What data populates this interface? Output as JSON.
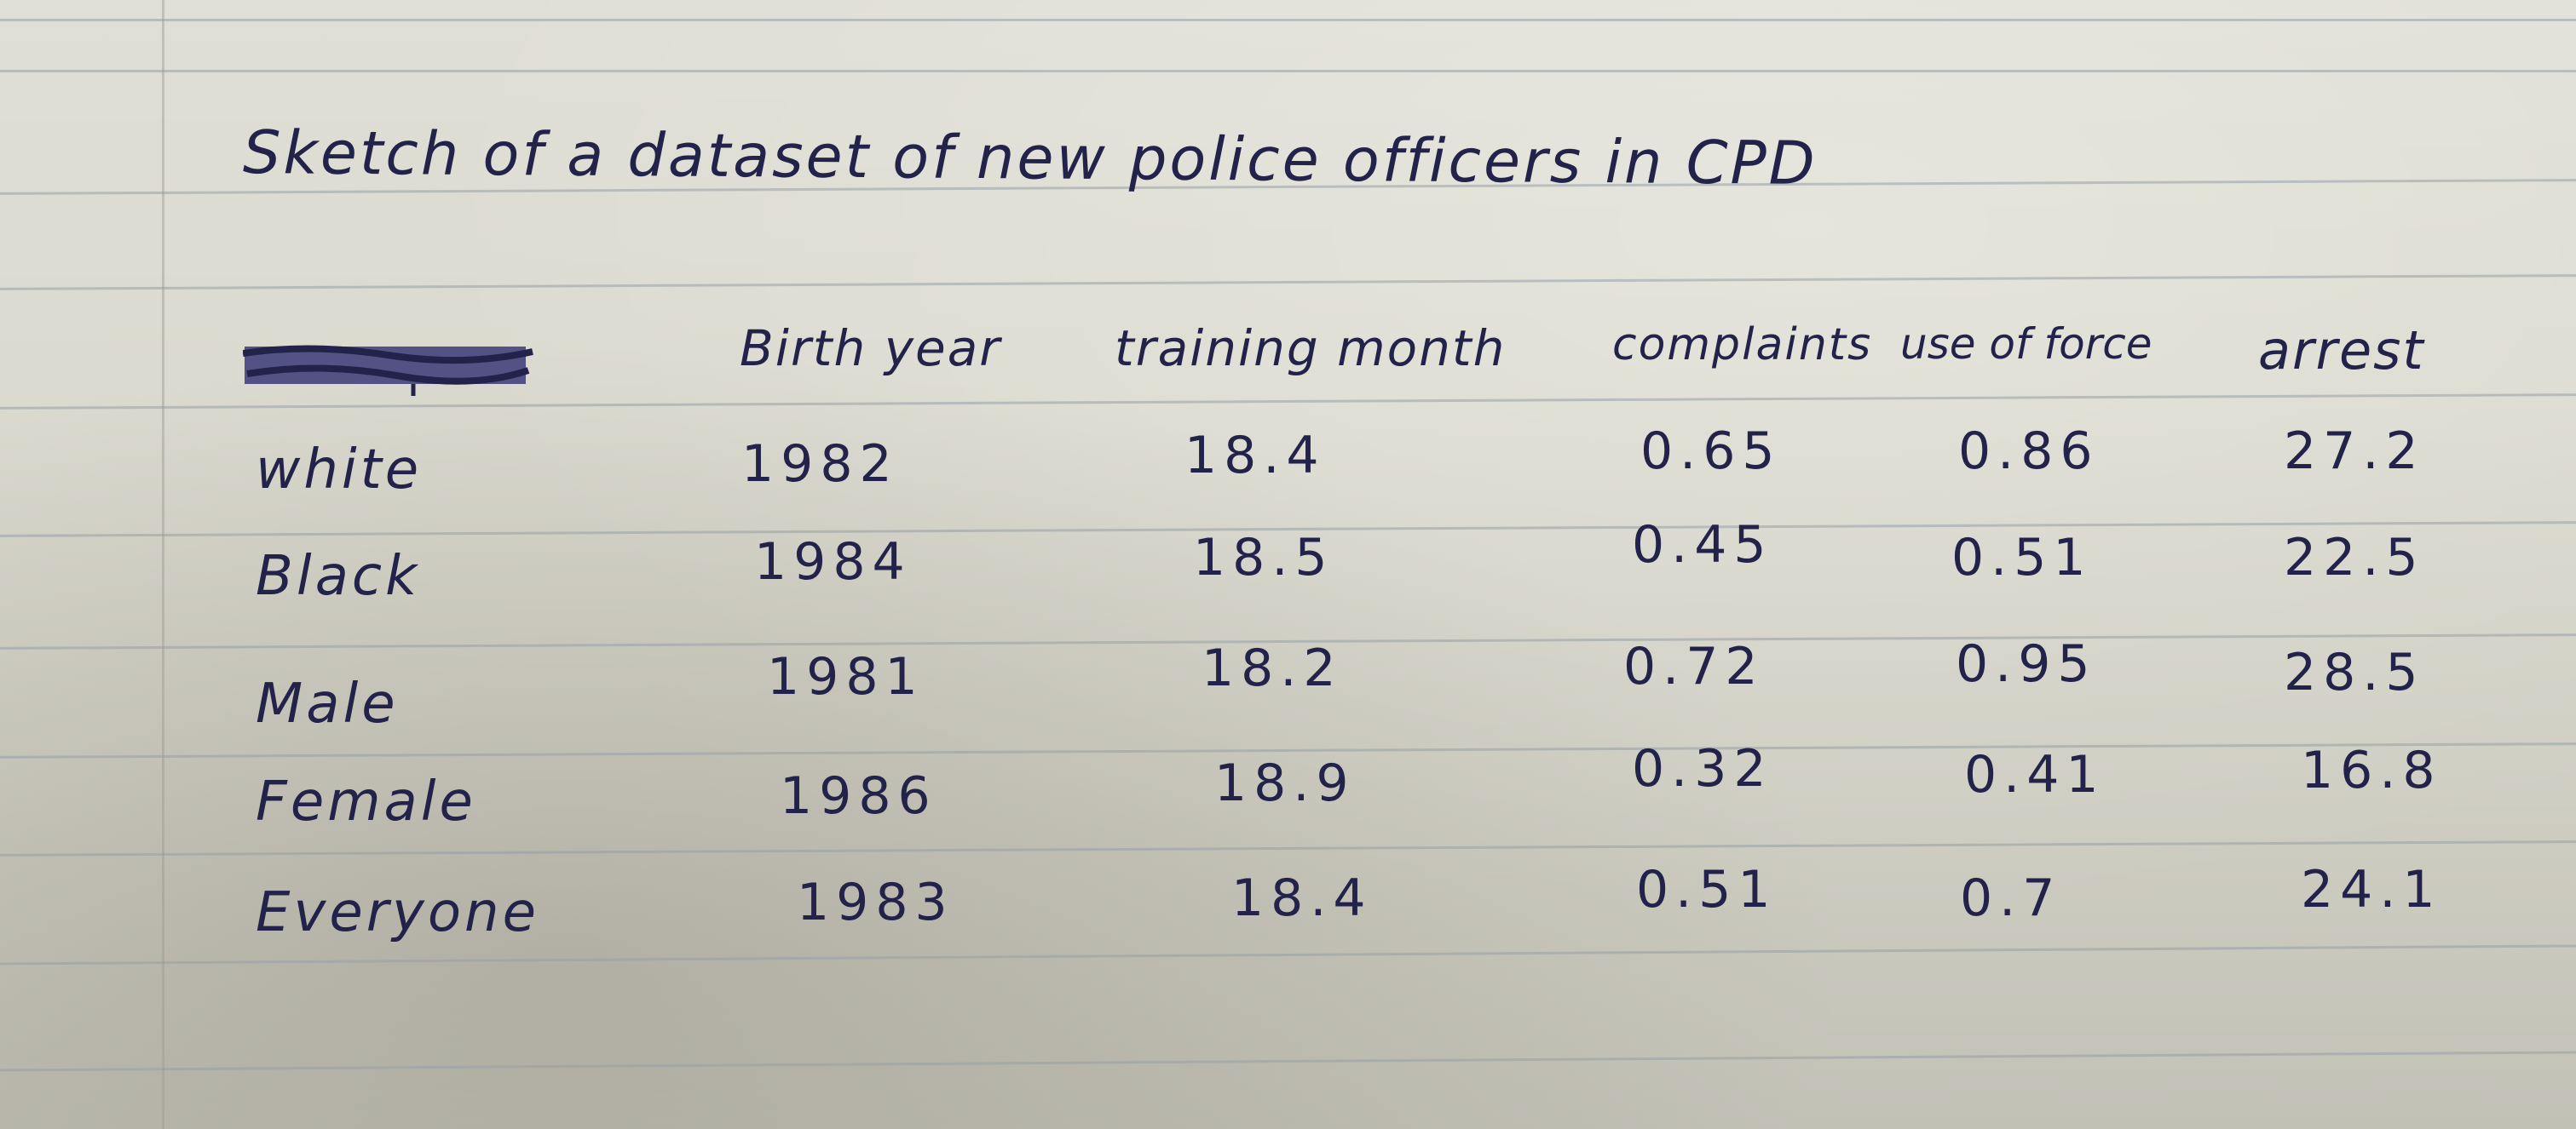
{
  "title": "Sketch of a dataset of new police officers in CPD",
  "columns": [
    "Birth year",
    "training month",
    "complaints",
    "use of force",
    "arrest"
  ],
  "rows": [
    {
      "label": "white",
      "values": [
        "1982",
        "18.4",
        "0.65",
        "0.86",
        "27.2"
      ]
    },
    {
      "label": "Black",
      "values": [
        "1984",
        "18.5",
        "0.45",
        "0.51",
        "22.5"
      ]
    },
    {
      "label": "Male",
      "values": [
        "1981",
        "18.2",
        "0.72",
        "0.95",
        "28.5"
      ]
    },
    {
      "label": "Female",
      "values": [
        "1986",
        "18.9",
        "0.32",
        "0.41",
        "16.8"
      ]
    },
    {
      "label": "Everyone",
      "values": [
        "1983",
        "18.4",
        "0.51",
        "0.7",
        "24.1"
      ]
    }
  ],
  "crossed_out_header": "scribbled-out word",
  "ink_color": "#23224a"
}
